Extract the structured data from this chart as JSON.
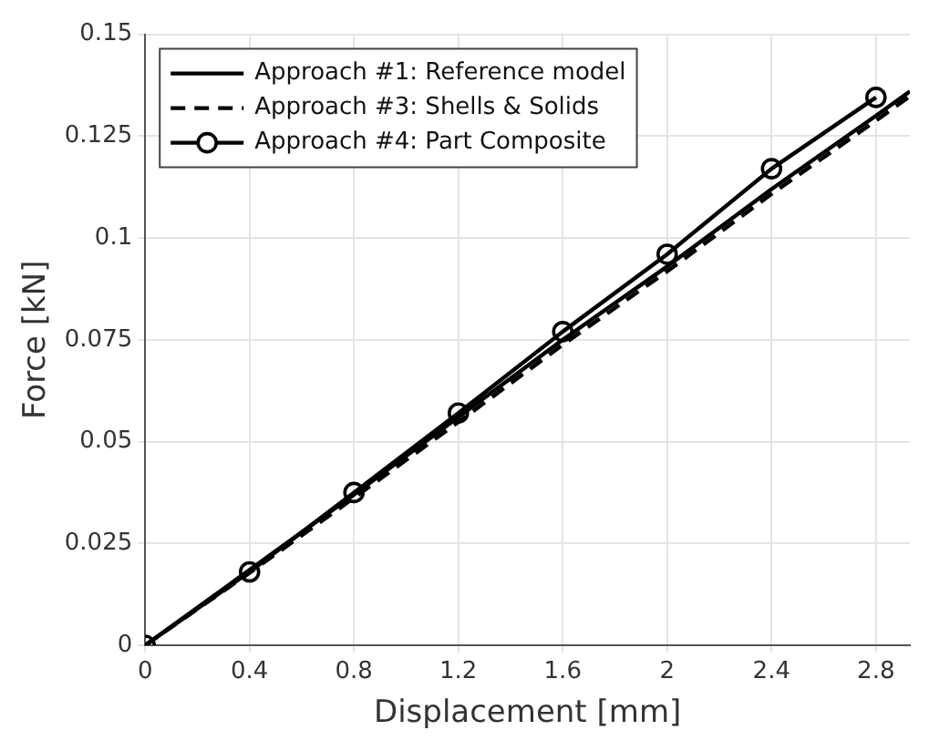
{
  "chart_data": {
    "type": "line",
    "xlabel": "Displacement [mm]",
    "ylabel": "Force [kN]",
    "xlim": [
      0,
      2.93
    ],
    "xticks": [
      0,
      0.4,
      0.8,
      1.2,
      1.6,
      2,
      2.4,
      2.8
    ],
    "ylim": [
      0,
      0.15
    ],
    "yticks": [
      0,
      0.025,
      0.05,
      0.075,
      0.1,
      0.125,
      0.15
    ],
    "grid": true,
    "legend": "top left",
    "series": [
      {
        "name": "Approach #1: Reference model",
        "color": "#000000",
        "line_style": "solid",
        "marker": "none",
        "x": [
          0,
          0.4,
          0.8,
          1.2,
          1.6,
          2,
          2.4,
          2.8,
          2.93
        ],
        "values": [
          0,
          0.0185,
          0.037,
          0.056,
          0.075,
          0.093,
          0.112,
          0.13,
          0.136
        ]
      },
      {
        "name": "Approach #3: Shells & Solids",
        "color": "#000000",
        "line_style": "dashed",
        "marker": "none",
        "x": [
          0,
          0.4,
          0.8,
          1.2,
          1.6,
          2,
          2.4,
          2.8,
          2.93
        ],
        "values": [
          0,
          0.0178,
          0.0362,
          0.0548,
          0.0738,
          0.0918,
          0.1108,
          0.1288,
          0.1348
        ]
      },
      {
        "name": "Approach #4: Part Composite",
        "color": "#000000",
        "line_style": "solid",
        "marker": "circle",
        "x": [
          0,
          0.4,
          0.8,
          1.2,
          1.6,
          2,
          2.4,
          2.8
        ],
        "values": [
          0,
          0.018,
          0.0375,
          0.057,
          0.077,
          0.096,
          0.117,
          0.1345
        ]
      }
    ]
  }
}
